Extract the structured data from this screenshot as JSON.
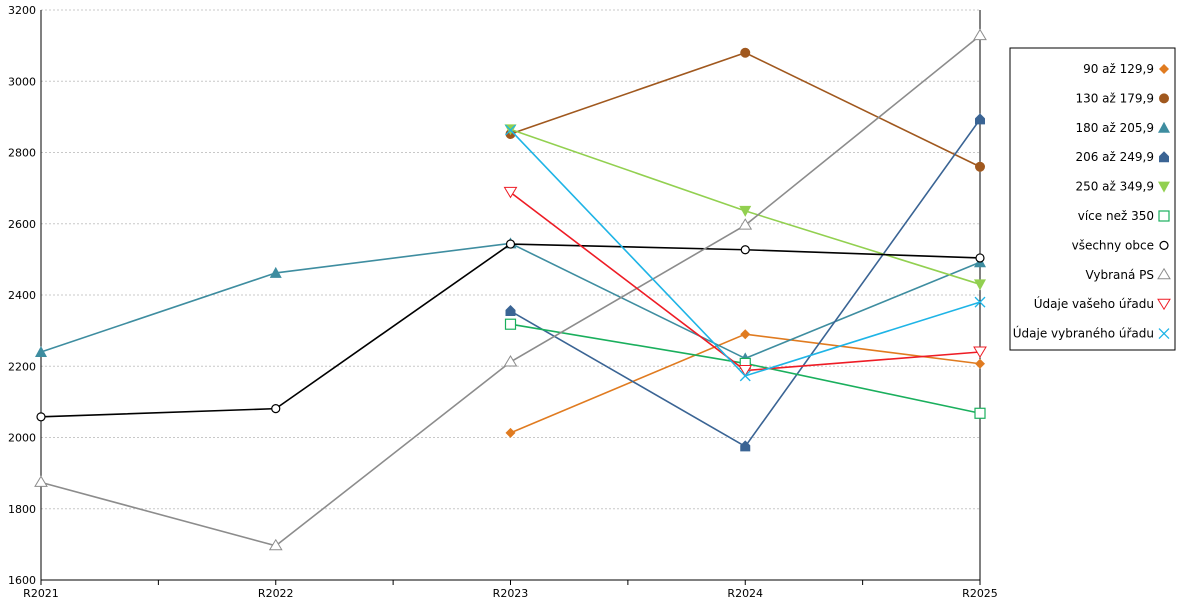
{
  "chart_data": {
    "type": "line",
    "categories": [
      "R2021",
      "R2022",
      "R2023",
      "R2024",
      "R2025"
    ],
    "ylim": [
      1600,
      3200
    ],
    "yticks": [
      1600,
      1800,
      2000,
      2200,
      2400,
      2600,
      2800,
      3000,
      3200
    ],
    "grid": true,
    "legend_position": "right",
    "series": [
      {
        "name": "90 až 129,9",
        "color": "#e07b20",
        "marker": "diamond-filled",
        "values": [
          null,
          null,
          2013,
          2290,
          2207
        ]
      },
      {
        "name": "130 až 179,9",
        "color": "#a0581e",
        "marker": "circle-filled",
        "values": [
          null,
          null,
          2852,
          3080,
          2760
        ]
      },
      {
        "name": "180 až 205,9",
        "color": "#3e8da0",
        "marker": "triangle-up-filled",
        "values": [
          2240,
          2462,
          2545,
          2222,
          2492
        ]
      },
      {
        "name": "206 až 249,9",
        "color": "#3a6494",
        "marker": "house-filled",
        "values": [
          null,
          null,
          2355,
          1975,
          2893
        ]
      },
      {
        "name": "250 až 349,9",
        "color": "#92d050",
        "marker": "triangle-down-filled",
        "values": [
          null,
          null,
          2865,
          2636,
          2430
        ]
      },
      {
        "name": "více než 350",
        "color": "#1aaf5d",
        "marker": "square-open",
        "values": [
          null,
          null,
          2318,
          2208,
          2068
        ]
      },
      {
        "name": "všechny obce",
        "color": "#000000",
        "marker": "circle-open",
        "values": [
          2058,
          2081,
          2543,
          2527,
          2504
        ]
      },
      {
        "name": "Vybraná PS",
        "color": "#8c8c8c",
        "marker": "triangle-up-open",
        "values": [
          1874,
          1696,
          2212,
          2596,
          3128
        ]
      },
      {
        "name": "Údaje vašeho úřadu",
        "color": "#ee1c25",
        "marker": "triangle-down-open",
        "values": [
          null,
          null,
          2688,
          2188,
          2240
        ]
      },
      {
        "name": "Údaje vybraného úřadu",
        "color": "#1eb4e6",
        "marker": "x",
        "values": [
          null,
          null,
          2863,
          2173,
          2380
        ]
      }
    ]
  }
}
